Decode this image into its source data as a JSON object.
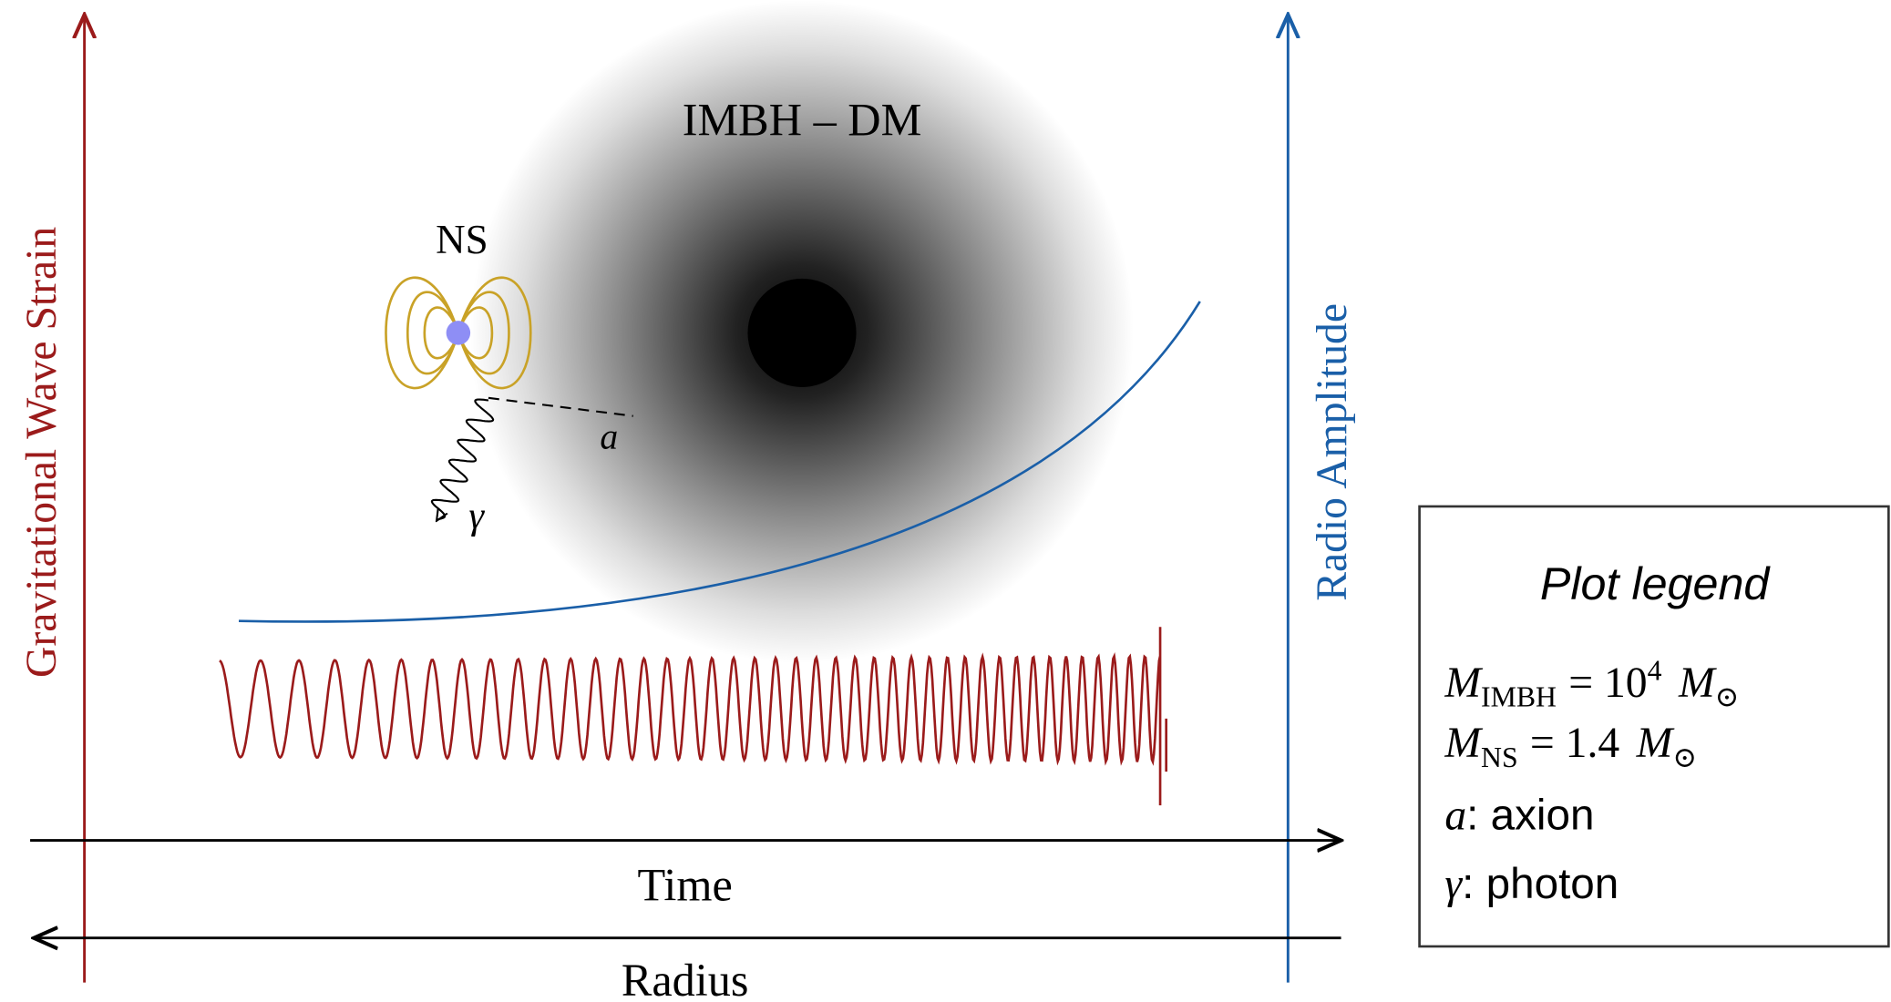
{
  "diagram": {
    "halo_label": "IMBH – DM",
    "ns_label": "NS",
    "axion_label": "a",
    "photon_label": "γ",
    "left_axis_label": "Gravitational Wave Strain",
    "right_axis_label": "Radio Amplitude",
    "time_label": "Time",
    "radius_label": "Radius",
    "legend": {
      "title": "Plot legend",
      "entries": [
        {
          "symbol": "M",
          "sub": "IMBH",
          "rhs": "= 10",
          "sup": "4",
          "unit": "M",
          "unit_sub": "⊙"
        },
        {
          "symbol": "M",
          "sub": "NS",
          "rhs": "= 1.4",
          "unit": "M",
          "unit_sub": "⊙"
        },
        {
          "symbol": "a",
          "text": ": axion"
        },
        {
          "symbol": "γ",
          "text": ": photon"
        }
      ]
    }
  }
}
